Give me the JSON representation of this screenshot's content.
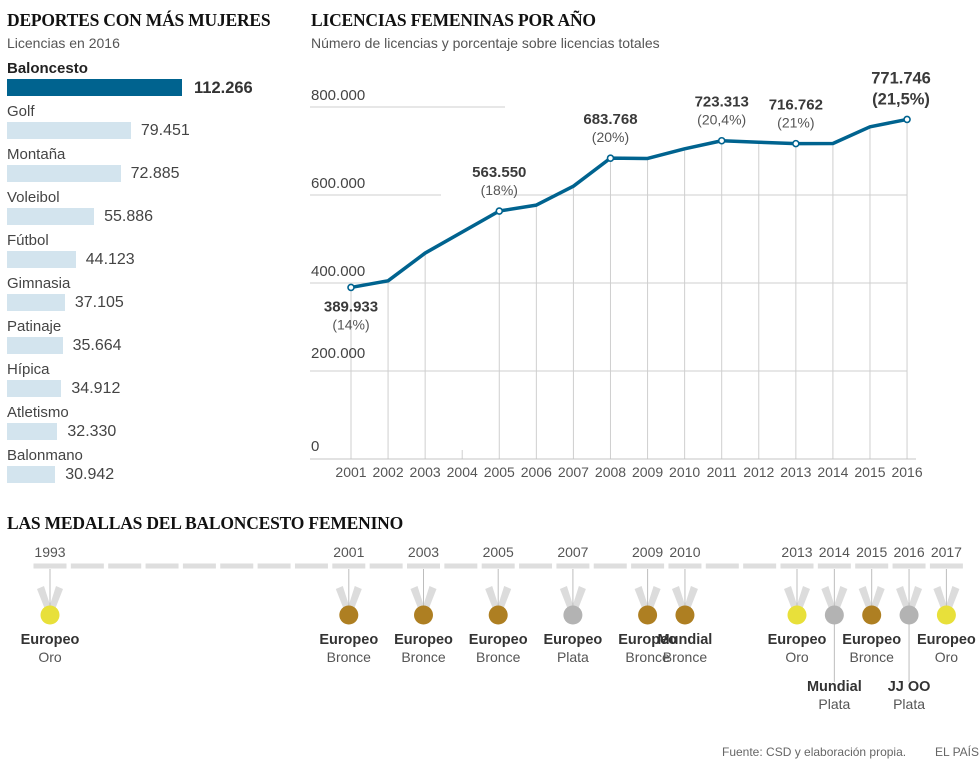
{
  "bar_panel": {
    "title": "DEPORTES CON MÁS MUJERES",
    "subtitle": "Licencias en 2016"
  },
  "line_panel": {
    "title": "LICENCIAS FEMENINAS POR AÑO",
    "subtitle": "Número de licencias y porcentaje sobre licencias totales"
  },
  "medals_panel": {
    "title": "LAS MEDALLAS DEL BALONCESTO FEMENINO",
    "colors": {
      "Oro": "#e8e03a",
      "Plata": "#b3b3b3",
      "Bronce": "#ae7f22"
    },
    "timeline_start": 1993,
    "timeline_end": 2017,
    "medals": [
      {
        "year": "1993",
        "competition": "Europeo",
        "medal": "Oro",
        "row": 0
      },
      {
        "year": "2001",
        "competition": "Europeo",
        "medal": "Bronce",
        "row": 0
      },
      {
        "year": "2003",
        "competition": "Europeo",
        "medal": "Bronce",
        "row": 0
      },
      {
        "year": "2005",
        "competition": "Europeo",
        "medal": "Bronce",
        "row": 0
      },
      {
        "year": "2007",
        "competition": "Europeo",
        "medal": "Plata",
        "row": 0
      },
      {
        "year": "2009",
        "competition": "Europeo",
        "medal": "Bronce",
        "row": 0
      },
      {
        "year": "2010",
        "competition": "Mundial",
        "medal": "Bronce",
        "row": 0
      },
      {
        "year": "2013",
        "competition": "Europeo",
        "medal": "Oro",
        "row": 0
      },
      {
        "year": "2014",
        "competition": "Mundial",
        "medal": "Plata",
        "row": 1
      },
      {
        "year": "2015",
        "competition": "Europeo",
        "medal": "Bronce",
        "row": 0
      },
      {
        "year": "2016",
        "competition": "JJ OO",
        "medal": "Plata",
        "row": 1
      },
      {
        "year": "2017",
        "competition": "Europeo",
        "medal": "Oro",
        "row": 0
      }
    ]
  },
  "footer": {
    "source": "Fuente: CSD y elaboración propia.",
    "brand": "EL PAÍS"
  },
  "chart_data": [
    {
      "type": "bar",
      "orientation": "horizontal",
      "title": "DEPORTES CON MÁS MUJERES",
      "subtitle": "Licencias en 2016",
      "highlight_color": "#00638f",
      "bar_color": "#d3e4ee",
      "categories": [
        "Baloncesto",
        "Golf",
        "Montaña",
        "Voleibol",
        "Fútbol",
        "Gimnasia",
        "Patinaje",
        "Hípica",
        "Atletismo",
        "Balonmano"
      ],
      "values": [
        112266,
        79451,
        72885,
        55886,
        44123,
        37105,
        35664,
        34912,
        32330,
        30942
      ],
      "value_labels": [
        "112.266",
        "79.451",
        "72.885",
        "55.886",
        "44.123",
        "37.105",
        "35.664",
        "34.912",
        "32.330",
        "30.942"
      ],
      "highlight": "Baloncesto"
    },
    {
      "type": "line",
      "title": "LICENCIAS FEMENINAS POR AÑO",
      "subtitle": "Número de licencias y porcentaje sobre licencias totales",
      "line_color": "#00638f",
      "x": [
        "2001",
        "2002",
        "2003",
        "2004",
        "2005",
        "2006",
        "2007",
        "2008",
        "2009",
        "2010",
        "2011",
        "2012",
        "2013",
        "2014",
        "2015",
        "2016"
      ],
      "values": [
        389933,
        405000,
        468000,
        null,
        563550,
        577000,
        620000,
        683768,
        683000,
        705000,
        723313,
        720000,
        716762,
        717000,
        755000,
        771746
      ],
      "ylim": [
        0,
        800000
      ],
      "yticks": [
        0,
        200000,
        400000,
        600000,
        800000
      ],
      "ytick_labels": [
        "0",
        "200.000",
        "400.000",
        "600.000",
        "800.000"
      ],
      "grid": true,
      "annotations": [
        {
          "x": "2001",
          "value": "389.933",
          "pct": "(14%)",
          "position": "below"
        },
        {
          "x": "2005",
          "value": "563.550",
          "pct": "(18%)",
          "position": "above"
        },
        {
          "x": "2008",
          "value": "683.768",
          "pct": "(20%)",
          "position": "above"
        },
        {
          "x": "2011",
          "value": "723.313",
          "pct": "(20,4%)",
          "position": "above"
        },
        {
          "x": "2013",
          "value": "716.762",
          "pct": "(21%)",
          "position": "above"
        },
        {
          "x": "2016",
          "value": "771.746",
          "pct": "(21,5%)",
          "position": "above",
          "emphasis": true
        }
      ]
    }
  ]
}
